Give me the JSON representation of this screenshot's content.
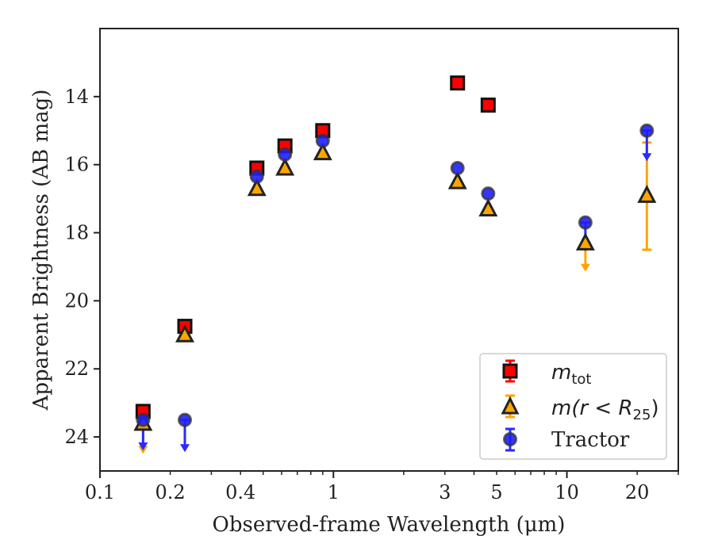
{
  "chart_data": {
    "type": "scatter",
    "title": "",
    "xlabel": "Observed-frame Wavelength (μm)",
    "ylabel": "Apparent Brightness (AB mag)",
    "xscale": "log",
    "xlim": [
      0.1,
      30
    ],
    "ylim": [
      25,
      12
    ],
    "y_inverted": true,
    "xticks": [
      0.1,
      0.2,
      0.4,
      1,
      3,
      5,
      10,
      20
    ],
    "xtick_labels": [
      "0.1",
      "0.2",
      "0.4",
      "1",
      "3",
      "5",
      "10",
      "20"
    ],
    "yticks": [
      14,
      16,
      18,
      20,
      22,
      24
    ],
    "ytick_labels": [
      "14",
      "16",
      "18",
      "20",
      "22",
      "24"
    ],
    "grid": false,
    "legend_position": "lower-right",
    "series": [
      {
        "name": "m_tot",
        "label_main": "m",
        "label_sub": "tot",
        "marker": "square",
        "face_color": "#ff0000",
        "error_color": "#ff0000",
        "points": [
          {
            "x": 0.153,
            "y": 23.25
          },
          {
            "x": 0.231,
            "y": 20.75
          },
          {
            "x": 0.47,
            "y": 16.1
          },
          {
            "x": 0.62,
            "y": 15.45
          },
          {
            "x": 0.9,
            "y": 15.0
          },
          {
            "x": 3.4,
            "y": 13.6
          },
          {
            "x": 4.6,
            "y": 14.25
          }
        ]
      },
      {
        "name": "m(r < R25)",
        "label_main": "m(r < R",
        "label_sub": "25",
        "label_end": ")",
        "marker": "triangle",
        "face_color": "#ffa500",
        "error_color": "#ffa500",
        "points": [
          {
            "x": 0.153,
            "y": 23.6,
            "upper_limit": true,
            "limit_to": 24.45
          },
          {
            "x": 0.231,
            "y": 21.0
          },
          {
            "x": 0.47,
            "y": 16.7
          },
          {
            "x": 0.62,
            "y": 16.1
          },
          {
            "x": 0.9,
            "y": 15.65
          },
          {
            "x": 3.4,
            "y": 16.5
          },
          {
            "x": 4.6,
            "y": 17.3
          },
          {
            "x": 12.0,
            "y": 18.3,
            "upper_limit": true,
            "limit_to": 19.1
          },
          {
            "x": 22.0,
            "y": 16.9,
            "yerr_low": 15.35,
            "yerr_high": 18.5
          }
        ]
      },
      {
        "name": "Tractor",
        "label_main": "Tractor",
        "marker": "circle",
        "face_color": "#1f1fff",
        "error_color": "#2a2aff",
        "points": [
          {
            "x": 0.153,
            "y": 23.5,
            "upper_limit": true,
            "limit_to": 24.35
          },
          {
            "x": 0.231,
            "y": 23.5,
            "upper_limit": true,
            "limit_to": 24.4
          },
          {
            "x": 0.47,
            "y": 16.35
          },
          {
            "x": 0.62,
            "y": 15.7
          },
          {
            "x": 0.9,
            "y": 15.3
          },
          {
            "x": 3.4,
            "y": 16.1
          },
          {
            "x": 4.6,
            "y": 16.85
          },
          {
            "x": 12.0,
            "y": 17.7,
            "upper_limit": true,
            "limit_to": 18.5
          },
          {
            "x": 22.0,
            "y": 15.0,
            "upper_limit": true,
            "limit_to": 15.85
          }
        ]
      }
    ]
  }
}
